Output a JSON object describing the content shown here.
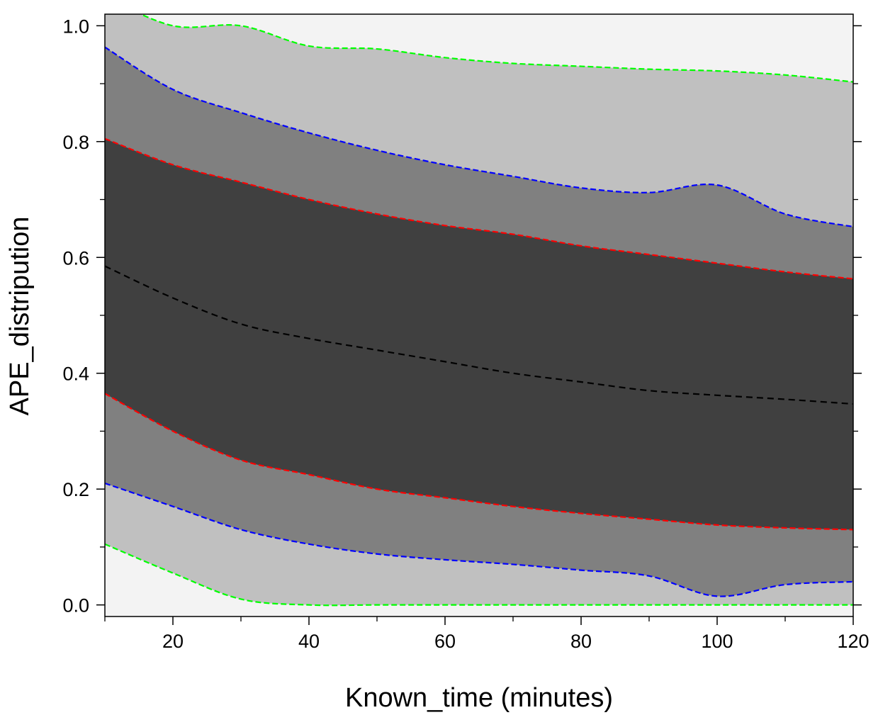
{
  "chart_data": {
    "type": "area",
    "xlabel": "Known_time (minutes)",
    "ylabel": "APE_distripution",
    "xlim": [
      10,
      120
    ],
    "ylim": [
      -0.02,
      1.02
    ],
    "x_ticks": [
      20,
      40,
      60,
      80,
      100,
      120
    ],
    "y_ticks": [
      0.0,
      0.2,
      0.4,
      0.6,
      0.8,
      1.0
    ],
    "x_tick_labels": [
      "20",
      "40",
      "60",
      "80",
      "100",
      "120"
    ],
    "y_tick_labels": [
      "0.0",
      "0.2",
      "0.4",
      "0.6",
      "0.8",
      "1.0"
    ],
    "grid": false,
    "x": [
      10,
      20,
      30,
      40,
      50,
      60,
      70,
      80,
      90,
      100,
      110,
      120
    ],
    "series": [
      {
        "role": "outer_upper",
        "color": "#00ff00",
        "values": [
          1.05,
          1.0,
          1.0,
          0.965,
          0.96,
          0.945,
          0.935,
          0.93,
          0.925,
          0.922,
          0.915,
          0.903
        ]
      },
      {
        "role": "mid_upper",
        "color": "#0000ff",
        "values": [
          0.963,
          0.89,
          0.85,
          0.815,
          0.785,
          0.76,
          0.74,
          0.72,
          0.712,
          0.725,
          0.675,
          0.653
        ]
      },
      {
        "role": "inner_upper",
        "color": "#ff0000",
        "values": [
          0.805,
          0.76,
          0.73,
          0.7,
          0.675,
          0.655,
          0.64,
          0.62,
          0.605,
          0.59,
          0.575,
          0.563
        ]
      },
      {
        "role": "median",
        "color": "#000000",
        "values": [
          0.585,
          0.53,
          0.485,
          0.46,
          0.44,
          0.42,
          0.4,
          0.385,
          0.37,
          0.362,
          0.355,
          0.347
        ]
      },
      {
        "role": "inner_lower",
        "color": "#ff0000",
        "values": [
          0.365,
          0.3,
          0.25,
          0.225,
          0.2,
          0.185,
          0.17,
          0.158,
          0.148,
          0.138,
          0.133,
          0.13
        ]
      },
      {
        "role": "mid_lower",
        "color": "#0000ff",
        "values": [
          0.21,
          0.17,
          0.13,
          0.105,
          0.088,
          0.078,
          0.07,
          0.06,
          0.05,
          0.015,
          0.035,
          0.04
        ]
      },
      {
        "role": "outer_lower",
        "color": "#00ff00",
        "values": [
          0.105,
          0.055,
          0.01,
          0.0,
          0.0,
          0.0,
          0.0,
          0.0,
          0.0,
          0.0,
          0.0,
          0.0
        ]
      }
    ],
    "band_fills": {
      "background": "#f3f3f3",
      "outer": "#c0c0c0",
      "middle": "#808080",
      "inner": "#404040"
    }
  }
}
